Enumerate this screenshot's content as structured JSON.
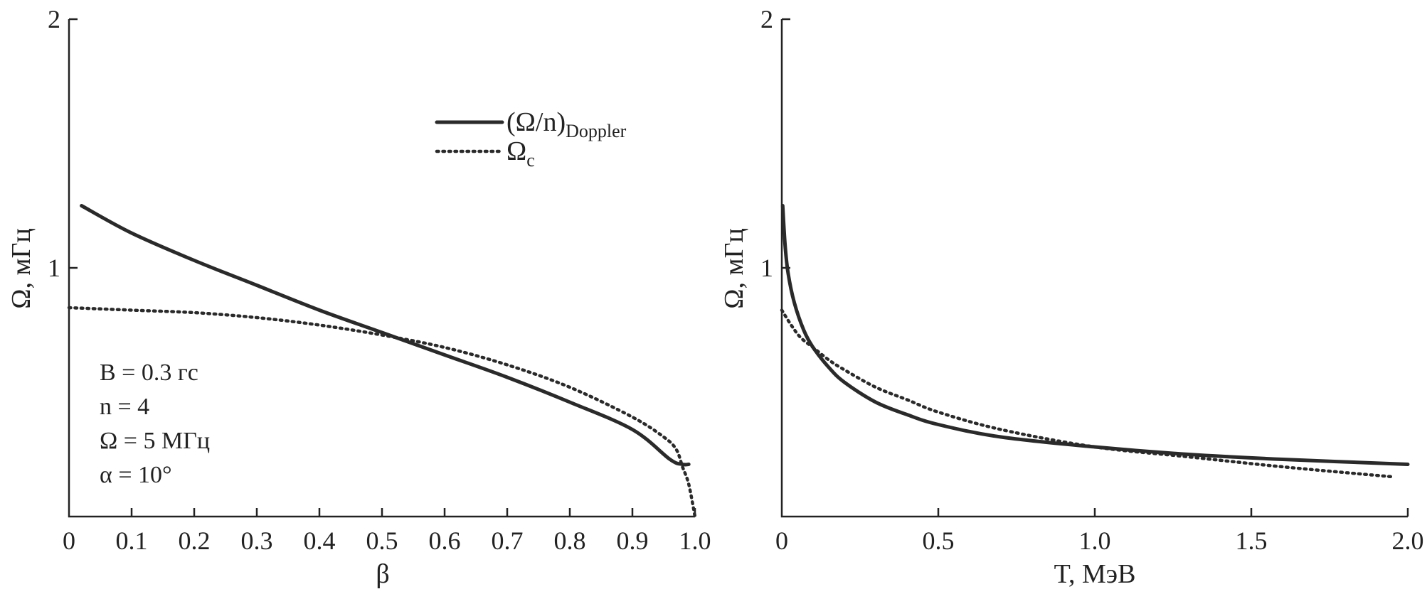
{
  "chart_data": [
    {
      "type": "line",
      "xlabel": "β",
      "ylabel": "Ω, мГц",
      "xlim": [
        0,
        1.0
      ],
      "ylim": [
        0,
        2
      ],
      "xticks": [
        "0",
        "0.1",
        "0.2",
        "0.3",
        "0.4",
        "0.5",
        "0.6",
        "0.7",
        "0.8",
        "0.9",
        "1.0"
      ],
      "yticks": [
        "1",
        "2"
      ],
      "legend": {
        "placement": "top-center",
        "entries": [
          {
            "label": "(Ω/n)",
            "sub": "Doppler",
            "style": "solid"
          },
          {
            "label": "Ω",
            "sub": "c",
            "style": "dotted"
          }
        ]
      },
      "annotation": [
        "B = 0.3 гс",
        "n = 4",
        "Ω = 5 МГц",
        "α = 10°"
      ],
      "series": [
        {
          "style": "solid",
          "x": [
            0.02,
            0.1,
            0.2,
            0.3,
            0.4,
            0.5,
            0.6,
            0.7,
            0.8,
            0.9,
            0.96,
            0.98,
            0.99
          ],
          "y": [
            1.25,
            1.14,
            1.03,
            0.93,
            0.83,
            0.74,
            0.65,
            0.56,
            0.46,
            0.35,
            0.23,
            0.21,
            0.21
          ]
        },
        {
          "style": "dotted",
          "x": [
            0.0,
            0.1,
            0.2,
            0.3,
            0.4,
            0.5,
            0.6,
            0.7,
            0.8,
            0.9,
            0.95,
            0.97,
            0.98,
            0.99,
            1.0
          ],
          "y": [
            0.84,
            0.83,
            0.82,
            0.8,
            0.77,
            0.73,
            0.68,
            0.61,
            0.52,
            0.4,
            0.32,
            0.27,
            0.2,
            0.13,
            0.0
          ]
        }
      ]
    },
    {
      "type": "line",
      "xlabel": "T, МэВ",
      "ylabel": "Ω, мГц",
      "xlim": [
        0,
        2.0
      ],
      "ylim": [
        0,
        2
      ],
      "xticks": [
        "0",
        "0.5",
        "1.0",
        "1.5",
        "2.0"
      ],
      "yticks": [
        "1",
        "2"
      ],
      "series": [
        {
          "style": "solid",
          "x": [
            0.003,
            0.01,
            0.02,
            0.04,
            0.07,
            0.1,
            0.15,
            0.2,
            0.3,
            0.4,
            0.5,
            0.7,
            1.0,
            1.3,
            1.6,
            2.0
          ],
          "y": [
            1.25,
            1.1,
            0.98,
            0.86,
            0.75,
            0.68,
            0.6,
            0.54,
            0.46,
            0.41,
            0.37,
            0.32,
            0.28,
            0.25,
            0.23,
            0.21
          ]
        },
        {
          "style": "dotted",
          "x": [
            0.0,
            0.03,
            0.06,
            0.1,
            0.15,
            0.2,
            0.3,
            0.4,
            0.5,
            0.7,
            1.0,
            1.3,
            1.6,
            1.95
          ],
          "y": [
            0.83,
            0.77,
            0.72,
            0.68,
            0.63,
            0.59,
            0.52,
            0.47,
            0.42,
            0.35,
            0.28,
            0.24,
            0.2,
            0.16
          ]
        }
      ]
    }
  ]
}
